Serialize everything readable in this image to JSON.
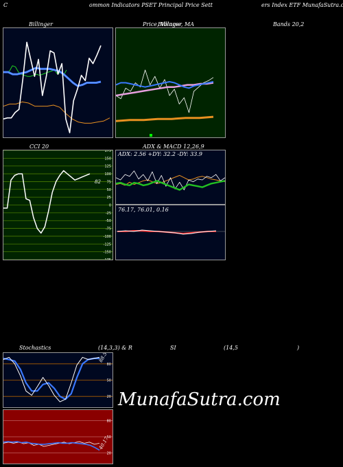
{
  "header": {
    "left": "C",
    "segments": [
      "ommon  Indicators PSET Principal Price  Sett",
      "ers Index ETF MunafaSutra.com"
    ]
  },
  "labels": {
    "price_main": "Price,  Volume,  MA",
    "price_sub": "Billinger",
    "bands": "Bands 20,2",
    "cci": "CCI 20",
    "adx_macd": "ADX  & MACD 12,26,9",
    "adx_values": "ADX: 2.56  +DY: 32.2  -DY: 33.9",
    "macd_values": "76.17,  76.01,  0.16",
    "stoch_left": "Stochastics",
    "stoch_mid": "(14,3,3) & R",
    "rsi": "SI",
    "rsi_params": "(14,5",
    "rsi_close": ")",
    "cci_value": "82",
    "stoch_value": "88.5",
    "rsi_value": "40.17",
    "watermark": "MunafaSutra.com"
  },
  "colors": {
    "panel_bg": "#000820",
    "green_bg": "#002400",
    "rsi_bg": "#8a0000",
    "blue": "#3a78ff",
    "orange": "#e89020",
    "green_line": "#22c022",
    "pink": "#e8a0e0",
    "grid_orange": "#b06000",
    "grid_green": "#4a7a00"
  },
  "chart_data": [
    {
      "type": "line",
      "panel": "price_bollinger",
      "ylim": [
        0,
        100
      ],
      "series": [
        {
          "values": [
            60,
            60,
            61,
            66,
            65,
            60,
            58,
            57,
            56,
            56,
            57,
            58,
            57,
            58,
            59,
            60,
            61,
            62,
            58,
            60,
            57,
            62
          ]
        },
        {
          "values": [
            16,
            17,
            17,
            22,
            25,
            54,
            88,
            72,
            56,
            72,
            38,
            56,
            80,
            78,
            58,
            68,
            16,
            3,
            33,
            44,
            57,
            52,
            73,
            68,
            76,
            85
          ]
        },
        {
          "values": [
            60,
            60,
            58,
            58,
            59,
            60,
            62,
            64,
            63,
            63,
            63,
            62,
            61,
            58,
            54,
            50,
            47,
            48,
            50,
            50,
            50,
            51
          ]
        },
        {
          "values": [
            28,
            30,
            30,
            32,
            31,
            28,
            28,
            28,
            29,
            27,
            21,
            16,
            13,
            12,
            12,
            13,
            14,
            17
          ]
        }
      ]
    },
    {
      "type": "line",
      "panel": "price_ma_volume",
      "ylim": [
        0,
        100
      ],
      "series": [
        {
          "values": [
            38,
            35,
            45,
            42,
            50,
            46,
            62,
            48,
            56,
            45,
            53,
            38,
            44,
            30,
            36,
            22,
            42,
            46,
            50,
            52,
            55
          ]
        },
        {
          "values": [
            48,
            50,
            50,
            49,
            48,
            47,
            46,
            47,
            48,
            49,
            50,
            51,
            50,
            48,
            46,
            45,
            47,
            48,
            49,
            50,
            51
          ]
        },
        {
          "values": [
            38,
            39,
            40,
            41,
            42,
            43,
            44,
            45,
            46,
            46,
            47,
            48,
            48,
            49,
            49,
            50
          ]
        },
        {
          "values": [
            14,
            15,
            15,
            16,
            16,
            17,
            17,
            18
          ]
        }
      ],
      "volume": [
        3
      ]
    },
    {
      "type": "line",
      "panel": "cci",
      "ylim": [
        -175,
        175
      ],
      "ticks": [
        175,
        150,
        125,
        100,
        75,
        50,
        25,
        0,
        -25,
        -50,
        -75,
        -100,
        -125,
        -150,
        -175
      ],
      "series": [
        {
          "values": [
            -10,
            -10,
            80,
            95,
            100,
            100,
            20,
            15,
            -40,
            -75,
            -90,
            -70,
            -20,
            40,
            75,
            95,
            110,
            100,
            90,
            80,
            85,
            90,
            95,
            100
          ]
        }
      ]
    },
    {
      "type": "line",
      "panel": "adx",
      "series": [
        {
          "values": [
            55,
            50,
            62,
            58,
            70,
            52,
            62,
            48,
            68,
            42,
            60,
            36,
            55,
            30,
            45,
            28,
            50,
            46,
            52,
            50,
            58,
            55,
            62,
            48,
            55
          ]
        },
        {
          "values": [
            40,
            42,
            38,
            45,
            40,
            44,
            48,
            50,
            46,
            42,
            44,
            48,
            52,
            56,
            60,
            55,
            50,
            52,
            56,
            58,
            55,
            52,
            50,
            48,
            46
          ]
        },
        {
          "values": [
            42,
            44,
            40,
            38,
            44,
            42,
            38,
            40,
            44,
            48,
            44,
            40,
            36,
            32,
            28,
            34,
            40,
            38,
            36,
            34,
            38,
            42,
            44,
            46,
            48
          ]
        }
      ]
    },
    {
      "type": "line",
      "panel": "macd",
      "series": [
        {
          "values": [
            0,
            1,
            0,
            2,
            1,
            0,
            -1,
            -2,
            -4,
            -3,
            -1,
            0,
            1
          ]
        },
        {
          "values": [
            0,
            0,
            1,
            1,
            0,
            0,
            -1,
            -2,
            -3,
            -2,
            -1,
            0,
            0
          ]
        }
      ]
    },
    {
      "type": "line",
      "panel": "stochastics",
      "ylim": [
        0,
        100
      ],
      "ticks": [
        80,
        50,
        20
      ],
      "series": [
        {
          "values": [
            88,
            92,
            80,
            58,
            30,
            22,
            38,
            55,
            40,
            22,
            10,
            15,
            45,
            78,
            92,
            88,
            90,
            92
          ]
        },
        {
          "values": [
            90,
            88,
            85,
            70,
            45,
            30,
            30,
            42,
            45,
            35,
            20,
            15,
            25,
            55,
            80,
            88,
            90,
            90
          ]
        }
      ]
    },
    {
      "type": "line",
      "panel": "rsi",
      "ylim": [
        0,
        100
      ],
      "ticks": [
        80,
        50,
        20
      ],
      "series": [
        {
          "values": [
            38,
            40,
            38,
            40,
            37,
            39,
            34,
            36,
            32,
            34,
            36,
            38,
            40,
            37,
            39,
            41,
            38,
            40,
            36,
            38
          ]
        },
        {
          "values": [
            40,
            41,
            40,
            41,
            39,
            40,
            38,
            37,
            36,
            36,
            37,
            38,
            39,
            38,
            38,
            39,
            38,
            37,
            36,
            34,
            30,
            25
          ]
        }
      ]
    }
  ]
}
